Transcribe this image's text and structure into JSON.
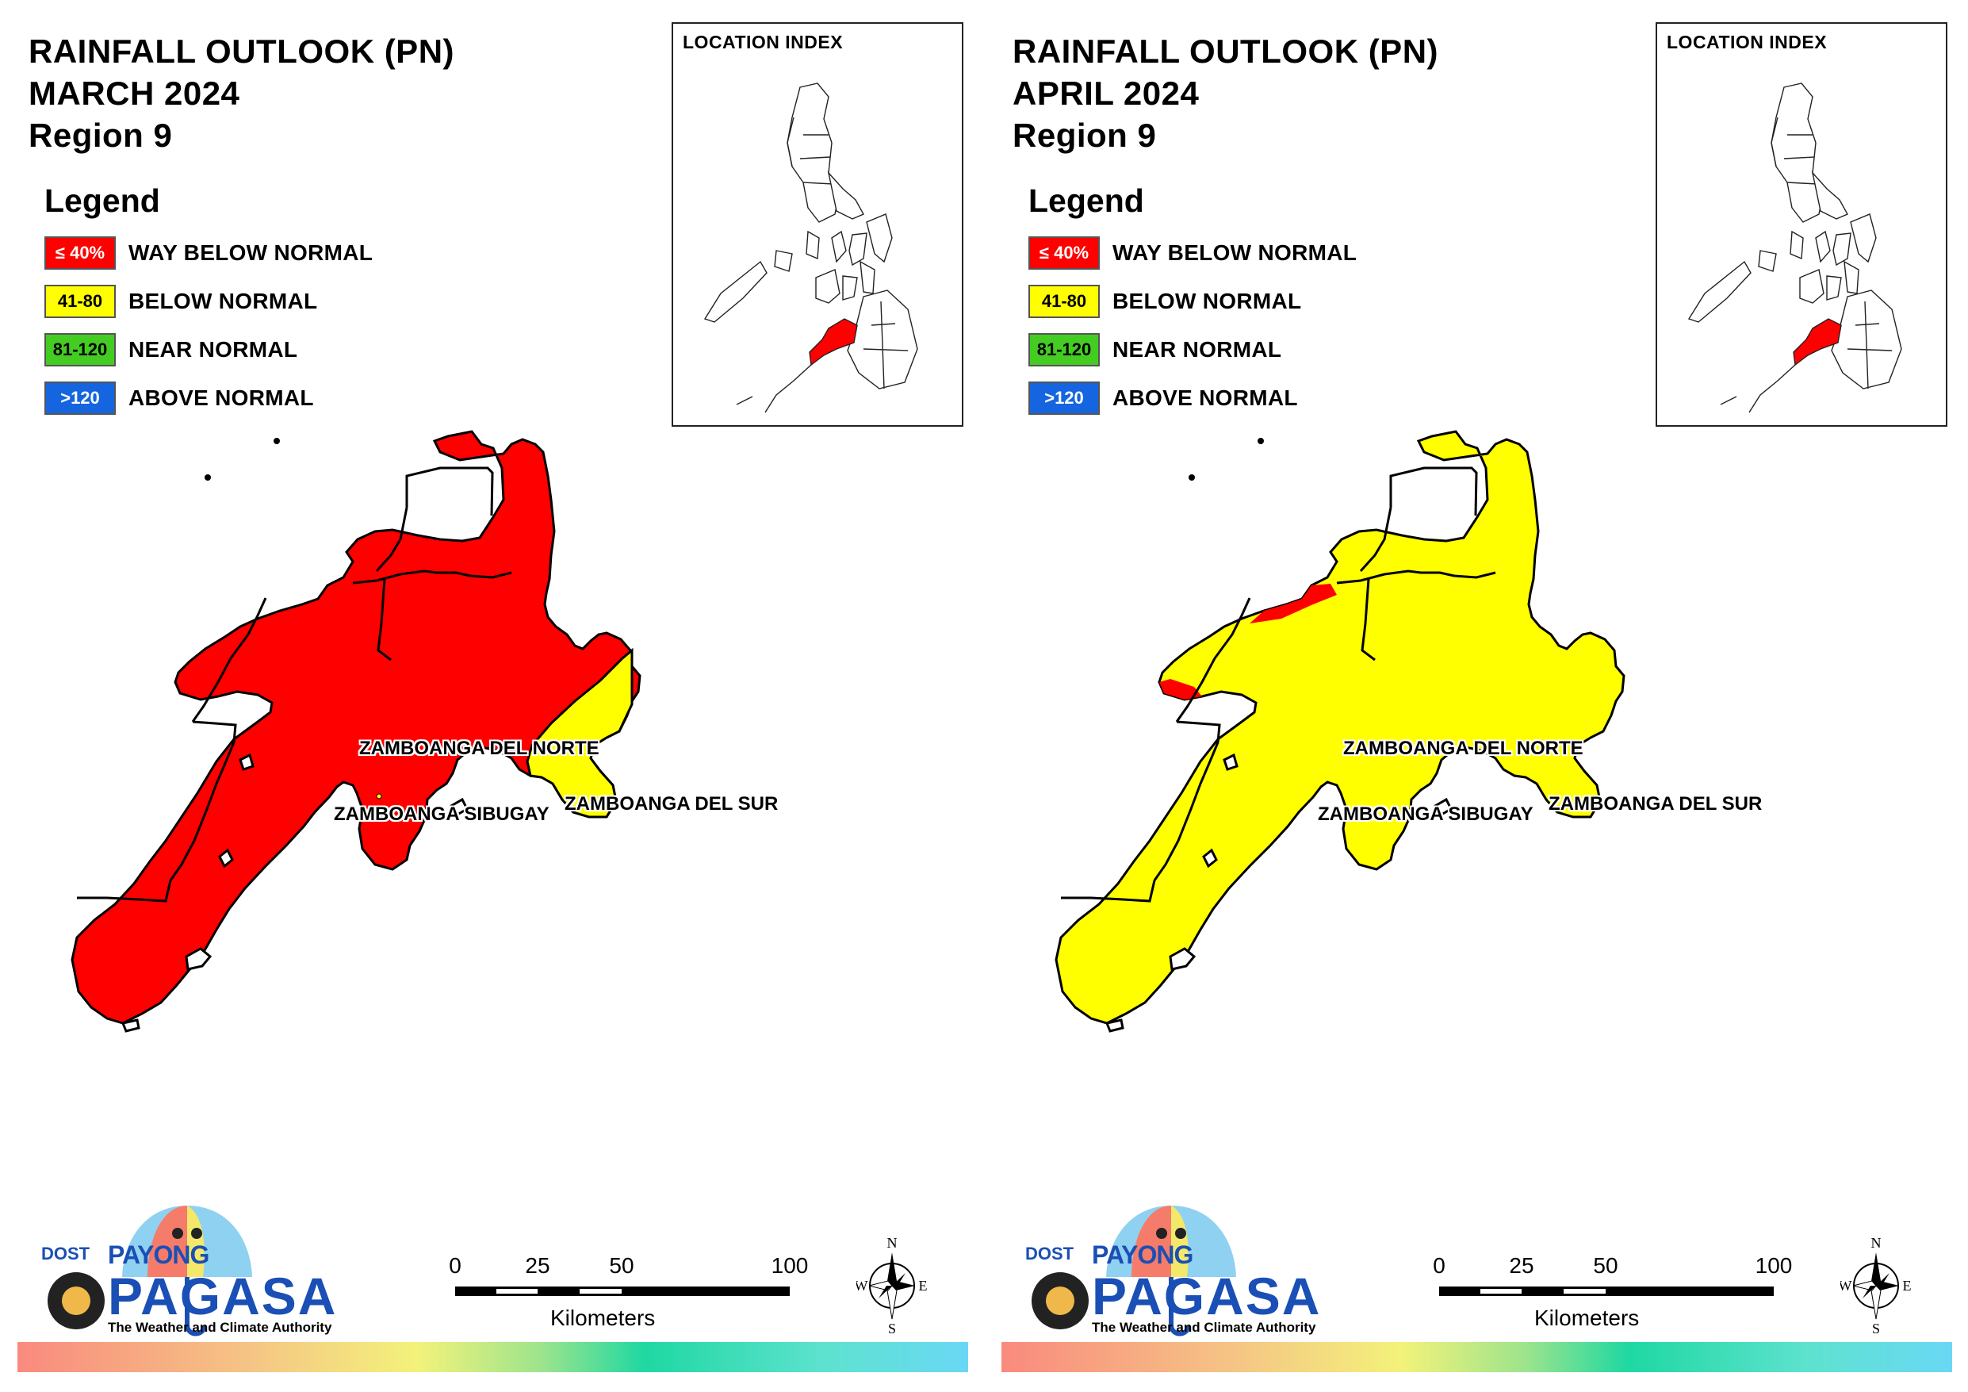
{
  "colors": {
    "way_below_normal": "#ff0000",
    "below_normal": "#ffff00",
    "near_normal": "#44cc22",
    "above_normal": "#1565e0"
  },
  "legend": {
    "title": "Legend",
    "items": [
      {
        "range": "≤ 40%",
        "label": "WAY BELOW NORMAL",
        "color": "#ff0000",
        "text_color": "#ffffff"
      },
      {
        "range": "41-80",
        "label": "BELOW NORMAL",
        "color": "#ffff00",
        "text_color": "#000000"
      },
      {
        "range": "81-120",
        "label": "NEAR NORMAL",
        "color": "#44cc22",
        "text_color": "#000000"
      },
      {
        "range": ">120",
        "label": "ABOVE NORMAL",
        "color": "#1565e0",
        "text_color": "#ffffff"
      }
    ]
  },
  "location_index": {
    "title": "LOCATION INDEX"
  },
  "provinces": {
    "north": "ZAMBOANGA DEL NORTE",
    "sibugay": "ZAMBOANGA SIBUGAY",
    "south": "ZAMBOANGA DEL SUR"
  },
  "scale": {
    "ticks": [
      "0",
      "25",
      "50",
      "100"
    ],
    "unit": "Kilometers"
  },
  "compass": {
    "n": "N",
    "e": "E",
    "s": "S",
    "w": "W"
  },
  "logo": {
    "dost": "DOST",
    "payong": "PAYONG",
    "pagasa": "PAGASA",
    "tagline": "The Weather and Climate Authority"
  },
  "panels": [
    {
      "title": "RAINFALL OUTLOOK (PN)",
      "month": "MARCH 2024",
      "region": "Region 9",
      "category_by_province": {
        "ZAMBOANGA DEL NORTE": "WAY BELOW NORMAL",
        "ZAMBOANGA SIBUGAY": "WAY BELOW NORMAL",
        "ZAMBOANGA DEL SUR": "WAY BELOW NORMAL (west) / BELOW NORMAL (east)"
      }
    },
    {
      "title": "RAINFALL OUTLOOK (PN)",
      "month": "APRIL 2024",
      "region": "Region 9",
      "category_by_province": {
        "ZAMBOANGA DEL NORTE": "BELOW NORMAL",
        "ZAMBOANGA SIBUGAY": "BELOW NORMAL",
        "ZAMBOANGA DEL SUR": "BELOW NORMAL"
      }
    }
  ]
}
